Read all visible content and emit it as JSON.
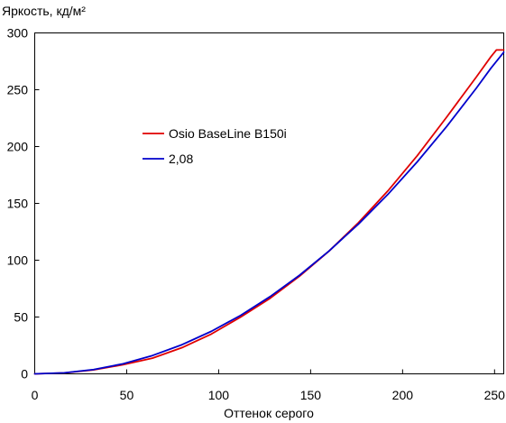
{
  "chart_data": {
    "type": "line",
    "xlabel": "Оттенок серого",
    "ylabel": "Яркость, кд/м²",
    "xlim": [
      0,
      255
    ],
    "ylim": [
      0,
      300
    ],
    "xticks": [
      0,
      50,
      100,
      150,
      200,
      250
    ],
    "yticks": [
      0,
      50,
      100,
      150,
      200,
      250,
      300
    ],
    "grid": false,
    "legend": "upper-left",
    "series": [
      {
        "name": "Osio BaseLine B150i",
        "color": "#e00000",
        "x": [
          0,
          16,
          32,
          48,
          64,
          80,
          96,
          112,
          128,
          144,
          160,
          176,
          192,
          208,
          224,
          240,
          248,
          251,
          255
        ],
        "y": [
          0,
          0.8,
          3.5,
          8.0,
          13.8,
          23.0,
          35.0,
          50.0,
          66.5,
          86.0,
          108.0,
          133.0,
          161.0,
          192.0,
          226.0,
          261.0,
          279.0,
          285.0,
          285.0
        ]
      },
      {
        "name": "2,08",
        "color": "#0000cc",
        "x": [
          0,
          16,
          32,
          48,
          64,
          80,
          96,
          112,
          128,
          144,
          160,
          176,
          192,
          208,
          224,
          240,
          248,
          255
        ],
        "y": [
          0,
          0.9,
          3.8,
          8.8,
          16.1,
          25.6,
          37.4,
          51.5,
          68.0,
          86.8,
          108.1,
          131.8,
          157.9,
          186.6,
          217.7,
          251.2,
          268.9,
          283.0
        ]
      }
    ]
  }
}
